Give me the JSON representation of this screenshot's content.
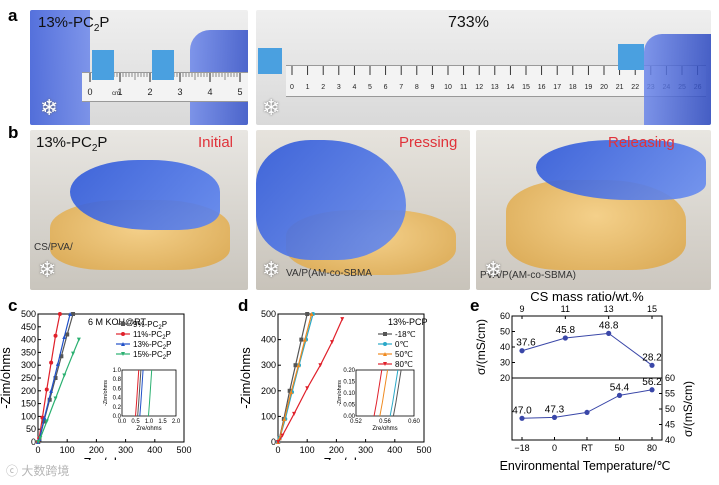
{
  "panels": {
    "a": {
      "letter": "a",
      "left_label": "13%-PC",
      "left_label_sub": "2",
      "left_label_end": "P",
      "right_label": "733%",
      "ruler_left_ticks": [
        "0",
        "1",
        "2",
        "3",
        "4",
        "5"
      ],
      "ruler_left_unit": "cm",
      "ruler_right_ticks": [
        "0",
        "1",
        "2",
        "3",
        "4",
        "5",
        "6",
        "7",
        "8",
        "9",
        "10",
        "11",
        "12",
        "13",
        "14",
        "15",
        "16",
        "17",
        "18",
        "19",
        "20",
        "21",
        "22",
        "23",
        "24",
        "25",
        "26"
      ]
    },
    "b": {
      "letter": "b",
      "label": "13%-PC",
      "label_sub": "2",
      "label_end": "P",
      "states": [
        "Initial",
        "Pressing",
        "Releasing"
      ],
      "paper_text_1": "CS/PVA/",
      "paper_text_2": "VA/P(AM-co-SBMA",
      "paper_text_3": "PVA/P(AM-co-SBMA)"
    },
    "c": {
      "letter": "c"
    },
    "d": {
      "letter": "d"
    },
    "e": {
      "letter": "e"
    }
  },
  "snow_icon": "snowflake-icon",
  "watermark": "大数跨境",
  "chart_data": [
    {
      "id": "c",
      "type": "line",
      "title": "6 M KOH@RT",
      "xlabel": "Zre/ohms",
      "ylabel": "-Zim/ohms",
      "xlim": [
        0,
        500
      ],
      "ylim": [
        0,
        500
      ],
      "xticks": [
        "0",
        "100",
        "200",
        "300",
        "400",
        "500"
      ],
      "yticks": [
        "0",
        "50",
        "100",
        "150",
        "200",
        "250",
        "300",
        "350",
        "400",
        "450",
        "500"
      ],
      "series": [
        {
          "name": "9%-PC",
          "sub": "2",
          "end": "P",
          "color": "#555555",
          "marker": "square",
          "x": [
            0.7,
            5,
            20,
            40,
            60,
            80,
            100,
            120
          ],
          "y": [
            0,
            10,
            80,
            165,
            250,
            335,
            420,
            500
          ]
        },
        {
          "name": "11%-PC",
          "sub": "2",
          "end": "P",
          "color": "#e0202a",
          "marker": "circle",
          "x": [
            0.6,
            4,
            15,
            30,
            45,
            60,
            75
          ],
          "y": [
            0,
            15,
            95,
            205,
            310,
            415,
            500
          ]
        },
        {
          "name": "13%-PC",
          "sub": "2",
          "end": "P",
          "color": "#2050c8",
          "marker": "triangle",
          "x": [
            0.6,
            5,
            22,
            45,
            68,
            90,
            110
          ],
          "y": [
            0,
            12,
            95,
            200,
            305,
            410,
            500
          ]
        },
        {
          "name": "15%-PC",
          "sub": "2",
          "end": "P",
          "color": "#2ab070",
          "marker": "triangle-down",
          "x": [
            1.0,
            8,
            30,
            60,
            90,
            120,
            140
          ],
          "y": [
            0,
            15,
            80,
            170,
            260,
            345,
            400
          ]
        }
      ],
      "inset": {
        "xlabel": "Zre/ohms",
        "ylabel": "-Zim/ohms",
        "xlim": [
          0,
          2.0
        ],
        "ylim": [
          0,
          1.0
        ],
        "xticks": [
          "0.0",
          "0.5",
          "1.0",
          "1.5",
          "2.0"
        ],
        "yticks": [
          "0.0",
          "0.2",
          "0.4",
          "0.6",
          "0.8",
          "1.0"
        ],
        "series": [
          {
            "color": "#555555",
            "x": [
              0.58,
              0.62,
              0.66,
              0.7
            ],
            "y": [
              0,
              0.3,
              0.65,
              1.0
            ]
          },
          {
            "color": "#e0202a",
            "x": [
              0.5,
              0.54,
              0.58,
              0.62
            ],
            "y": [
              0,
              0.3,
              0.65,
              1.0
            ]
          },
          {
            "color": "#2050c8",
            "x": [
              0.66,
              0.7,
              0.74,
              0.78
            ],
            "y": [
              0,
              0.3,
              0.65,
              1.0
            ]
          },
          {
            "color": "#2ab070",
            "x": [
              0.98,
              1.02,
              1.06,
              1.1
            ],
            "y": [
              0,
              0.3,
              0.65,
              1.0
            ]
          }
        ]
      }
    },
    {
      "id": "d",
      "type": "line",
      "title": "13%-PCP",
      "xlabel": "Zre/ohms",
      "ylabel": "-Zim/ohms",
      "xlim": [
        0,
        500
      ],
      "ylim": [
        0,
        500
      ],
      "xticks": [
        "0",
        "100",
        "200",
        "300",
        "400",
        "500"
      ],
      "yticks": [
        "0",
        "100",
        "200",
        "300",
        "400",
        "500"
      ],
      "series": [
        {
          "name": "-18℃",
          "color": "#555555",
          "marker": "square",
          "x": [
            0.6,
            5,
            20,
            40,
            60,
            80,
            100
          ],
          "y": [
            0,
            15,
            90,
            200,
            300,
            400,
            500
          ]
        },
        {
          "name": "0℃",
          "color": "#29a8c8",
          "marker": "circle",
          "x": [
            0.6,
            6,
            25,
            48,
            72,
            96,
            120
          ],
          "y": [
            0,
            15,
            90,
            195,
            300,
            400,
            500
          ]
        },
        {
          "name": "50℃",
          "color": "#ef8a20",
          "marker": "triangle",
          "x": [
            0.55,
            6,
            22,
            45,
            70,
            92,
            115
          ],
          "y": [
            0,
            15,
            90,
            195,
            300,
            400,
            500
          ]
        },
        {
          "name": "80℃",
          "color": "#e0202a",
          "marker": "triangle-down",
          "x": [
            0.54,
            15,
            55,
            100,
            145,
            185,
            220
          ],
          "y": [
            0,
            25,
            110,
            210,
            300,
            390,
            480
          ]
        }
      ],
      "inset": {
        "xlabel": "Zre/ohms",
        "ylabel": "-Zim/ohms",
        "xlim": [
          0.51,
          0.6
        ],
        "ylim": [
          0,
          0.2
        ],
        "xticks": [
          "0.52",
          "0.56",
          "0.60"
        ],
        "yticks": [
          "0.00",
          "0.05",
          "0.10",
          "0.15",
          "0.20"
        ],
        "series": [
          {
            "color": "#555555",
            "x": [
              0.568,
              0.572,
              0.576,
              0.58
            ],
            "y": [
              0,
              0.06,
              0.13,
              0.2
            ]
          },
          {
            "color": "#29a8c8",
            "x": [
              0.563,
              0.567,
              0.571,
              0.575
            ],
            "y": [
              0,
              0.06,
              0.13,
              0.2
            ]
          },
          {
            "color": "#ef8a20",
            "x": [
              0.547,
              0.551,
              0.555,
              0.559
            ],
            "y": [
              0,
              0.06,
              0.13,
              0.2
            ]
          },
          {
            "color": "#e0202a",
            "x": [
              0.538,
              0.542,
              0.546,
              0.55
            ],
            "y": [
              0,
              0.06,
              0.13,
              0.2
            ]
          }
        ]
      }
    },
    {
      "id": "e-top",
      "type": "line",
      "title": "CS mass ratio/wt.%",
      "ylabel": "σ/(mS/cm)",
      "categories": [
        "9",
        "11",
        "13",
        "15"
      ],
      "values": [
        37.6,
        45.8,
        48.8,
        28.2
      ],
      "labels": [
        "37.6",
        "45.8",
        "48.8",
        "28.2"
      ],
      "ylim": [
        20,
        60
      ],
      "yticks": [
        "20",
        "30",
        "40",
        "50",
        "60"
      ],
      "color": "#3a47a8"
    },
    {
      "id": "e-bottom",
      "type": "line",
      "xlabel": "Environmental Temperature/℃",
      "ylabel": "σ/(mS/cm)",
      "categories": [
        "−18",
        "0",
        "RT",
        "50",
        "80"
      ],
      "values": [
        47.0,
        47.3,
        48.9,
        54.4,
        56.2
      ],
      "labels": [
        "47.0",
        "47.3",
        "",
        "54.4",
        "56.2"
      ],
      "ylim": [
        40,
        60
      ],
      "yticks": [
        "40",
        "45",
        "50",
        "55",
        "60"
      ],
      "color": "#3a47a8"
    }
  ]
}
